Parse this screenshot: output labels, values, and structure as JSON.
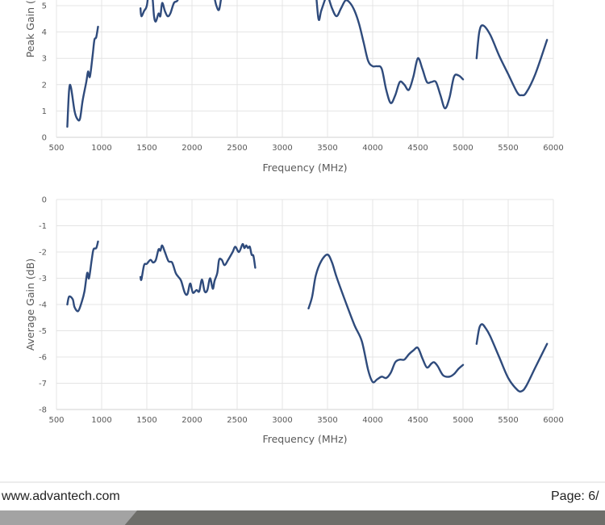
{
  "chart_data": [
    {
      "type": "line",
      "xlabel": "Frequency (MHz)",
      "ylabel": "Peak Gain (dBi)",
      "xlim": [
        500,
        6000
      ],
      "ylim": [
        0,
        9
      ],
      "xticks": [
        500,
        1000,
        1500,
        2000,
        2500,
        3000,
        3500,
        4000,
        4500,
        5000,
        5500,
        6000
      ],
      "yticks": [
        0,
        1,
        2,
        3,
        4,
        5
      ],
      "grid": true,
      "color": "#2f4b7c",
      "segments": [
        [
          [
            620,
            0.4
          ],
          [
            640,
            1.8
          ],
          [
            660,
            1.9
          ],
          [
            700,
            1.0
          ],
          [
            730,
            0.7
          ],
          [
            760,
            0.7
          ],
          [
            790,
            1.4
          ],
          [
            830,
            2.1
          ],
          [
            850,
            2.5
          ],
          [
            870,
            2.3
          ],
          [
            900,
            3.1
          ],
          [
            920,
            3.7
          ],
          [
            940,
            3.8
          ],
          [
            960,
            4.2
          ]
        ],
        [
          [
            1430,
            4.9
          ],
          [
            1440,
            4.6
          ],
          [
            1470,
            4.8
          ],
          [
            1500,
            5.0
          ],
          [
            1530,
            5.7
          ],
          [
            1560,
            5.4
          ],
          [
            1580,
            4.6
          ],
          [
            1600,
            4.4
          ],
          [
            1630,
            4.7
          ],
          [
            1650,
            4.6
          ],
          [
            1670,
            5.1
          ],
          [
            1700,
            4.8
          ],
          [
            1730,
            4.6
          ],
          [
            1760,
            4.7
          ],
          [
            1800,
            5.1
          ],
          [
            1840,
            5.2
          ],
          [
            1880,
            5.6
          ],
          [
            1950,
            6.0
          ],
          [
            2050,
            6.1
          ],
          [
            2150,
            5.9
          ],
          [
            2230,
            5.5
          ],
          [
            2270,
            5.0
          ],
          [
            2300,
            4.85
          ],
          [
            2330,
            5.4
          ],
          [
            2380,
            6.0
          ],
          [
            2450,
            6.2
          ],
          [
            2550,
            6.3
          ],
          [
            2650,
            6.2
          ],
          [
            2700,
            6.0
          ]
        ],
        [
          [
            3300,
            6.2
          ],
          [
            3360,
            5.8
          ],
          [
            3400,
            4.5
          ],
          [
            3430,
            4.8
          ],
          [
            3480,
            5.3
          ],
          [
            3500,
            5.4
          ],
          [
            3550,
            4.9
          ],
          [
            3600,
            4.6
          ],
          [
            3650,
            4.9
          ],
          [
            3700,
            5.2
          ],
          [
            3750,
            5.1
          ],
          [
            3800,
            4.8
          ],
          [
            3850,
            4.3
          ],
          [
            3900,
            3.6
          ],
          [
            3950,
            2.9
          ],
          [
            4000,
            2.7
          ],
          [
            4050,
            2.7
          ],
          [
            4100,
            2.6
          ],
          [
            4150,
            1.8
          ],
          [
            4200,
            1.3
          ],
          [
            4250,
            1.6
          ],
          [
            4300,
            2.1
          ],
          [
            4350,
            2.0
          ],
          [
            4400,
            1.8
          ],
          [
            4450,
            2.3
          ],
          [
            4500,
            3.0
          ],
          [
            4550,
            2.6
          ],
          [
            4600,
            2.1
          ],
          [
            4650,
            2.1
          ],
          [
            4700,
            2.1
          ],
          [
            4750,
            1.6
          ],
          [
            4800,
            1.1
          ],
          [
            4850,
            1.5
          ],
          [
            4900,
            2.3
          ],
          [
            4950,
            2.35
          ],
          [
            5000,
            2.2
          ]
        ],
        [
          [
            5150,
            3.0
          ],
          [
            5180,
            4.0
          ],
          [
            5220,
            4.25
          ],
          [
            5300,
            3.9
          ],
          [
            5400,
            3.1
          ],
          [
            5500,
            2.4
          ],
          [
            5600,
            1.7
          ],
          [
            5650,
            1.6
          ],
          [
            5700,
            1.7
          ],
          [
            5800,
            2.4
          ],
          [
            5930,
            3.7
          ]
        ]
      ]
    },
    {
      "type": "line",
      "xlabel": "Frequency (MHz)",
      "ylabel": "Average Gain (dB)",
      "xlim": [
        500,
        6000
      ],
      "ylim": [
        -8,
        0
      ],
      "xticks": [
        500,
        1000,
        1500,
        2000,
        2500,
        3000,
        3500,
        4000,
        4500,
        5000,
        5500,
        6000
      ],
      "yticks": [
        0,
        -1,
        -2,
        -3,
        -4,
        -5,
        -6,
        -7,
        -8
      ],
      "grid": true,
      "color": "#2f4b7c",
      "segments": [
        [
          [
            620,
            -4.0
          ],
          [
            640,
            -3.7
          ],
          [
            680,
            -3.8
          ],
          [
            700,
            -4.1
          ],
          [
            740,
            -4.25
          ],
          [
            780,
            -3.9
          ],
          [
            810,
            -3.5
          ],
          [
            840,
            -2.8
          ],
          [
            860,
            -3.0
          ],
          [
            890,
            -2.3
          ],
          [
            910,
            -1.9
          ],
          [
            940,
            -1.85
          ],
          [
            960,
            -1.6
          ]
        ],
        [
          [
            1430,
            -2.95
          ],
          [
            1440,
            -3.05
          ],
          [
            1470,
            -2.5
          ],
          [
            1500,
            -2.45
          ],
          [
            1540,
            -2.3
          ],
          [
            1570,
            -2.4
          ],
          [
            1600,
            -2.3
          ],
          [
            1630,
            -1.9
          ],
          [
            1650,
            -1.95
          ],
          [
            1670,
            -1.75
          ],
          [
            1700,
            -2.0
          ],
          [
            1740,
            -2.35
          ],
          [
            1780,
            -2.4
          ],
          [
            1820,
            -2.8
          ],
          [
            1850,
            -2.95
          ],
          [
            1880,
            -3.1
          ],
          [
            1920,
            -3.55
          ],
          [
            1950,
            -3.6
          ],
          [
            1980,
            -3.2
          ],
          [
            2010,
            -3.55
          ],
          [
            2050,
            -3.45
          ],
          [
            2080,
            -3.5
          ],
          [
            2110,
            -3.05
          ],
          [
            2140,
            -3.5
          ],
          [
            2170,
            -3.45
          ],
          [
            2200,
            -3.0
          ],
          [
            2230,
            -3.4
          ],
          [
            2250,
            -3.1
          ],
          [
            2280,
            -2.8
          ],
          [
            2300,
            -2.3
          ],
          [
            2330,
            -2.3
          ],
          [
            2360,
            -2.5
          ],
          [
            2400,
            -2.3
          ],
          [
            2450,
            -2.0
          ],
          [
            2480,
            -1.8
          ],
          [
            2520,
            -2.0
          ],
          [
            2560,
            -1.7
          ],
          [
            2580,
            -1.85
          ],
          [
            2600,
            -1.75
          ],
          [
            2620,
            -1.85
          ],
          [
            2640,
            -1.8
          ],
          [
            2660,
            -2.1
          ],
          [
            2680,
            -2.15
          ],
          [
            2700,
            -2.6
          ]
        ],
        [
          [
            3290,
            -4.15
          ],
          [
            3330,
            -3.7
          ],
          [
            3370,
            -2.9
          ],
          [
            3430,
            -2.35
          ],
          [
            3500,
            -2.1
          ],
          [
            3550,
            -2.4
          ],
          [
            3600,
            -2.95
          ],
          [
            3700,
            -3.9
          ],
          [
            3800,
            -4.8
          ],
          [
            3880,
            -5.4
          ],
          [
            3950,
            -6.5
          ],
          [
            4000,
            -6.95
          ],
          [
            4050,
            -6.85
          ],
          [
            4100,
            -6.75
          ],
          [
            4150,
            -6.8
          ],
          [
            4200,
            -6.6
          ],
          [
            4250,
            -6.2
          ],
          [
            4300,
            -6.1
          ],
          [
            4350,
            -6.1
          ],
          [
            4400,
            -5.9
          ],
          [
            4450,
            -5.75
          ],
          [
            4500,
            -5.65
          ],
          [
            4550,
            -6.05
          ],
          [
            4600,
            -6.4
          ],
          [
            4650,
            -6.25
          ],
          [
            4680,
            -6.2
          ],
          [
            4720,
            -6.35
          ],
          [
            4780,
            -6.7
          ],
          [
            4850,
            -6.75
          ],
          [
            4900,
            -6.65
          ],
          [
            4950,
            -6.45
          ],
          [
            5000,
            -6.3
          ]
        ],
        [
          [
            5150,
            -5.5
          ],
          [
            5180,
            -4.9
          ],
          [
            5210,
            -4.75
          ],
          [
            5250,
            -4.9
          ],
          [
            5300,
            -5.2
          ],
          [
            5400,
            -6.0
          ],
          [
            5500,
            -6.8
          ],
          [
            5600,
            -7.25
          ],
          [
            5650,
            -7.3
          ],
          [
            5700,
            -7.1
          ],
          [
            5800,
            -6.4
          ],
          [
            5930,
            -5.5
          ]
        ]
      ]
    }
  ],
  "footer": {
    "website": "www.advantech.com",
    "page": "Page: 6/"
  }
}
